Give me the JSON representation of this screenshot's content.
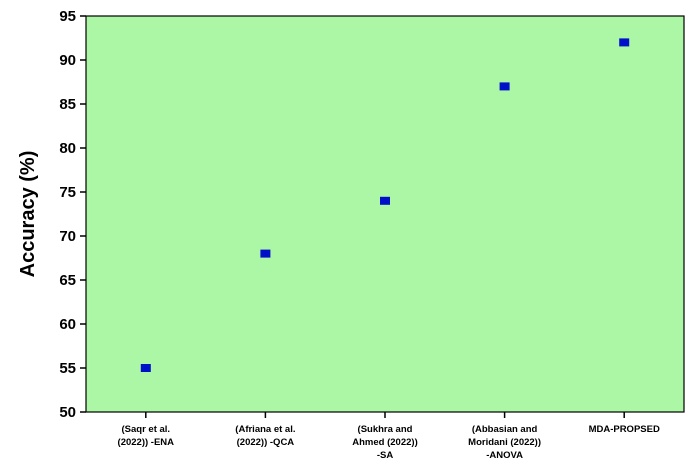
{
  "chart_data": {
    "type": "scatter",
    "title": "",
    "xlabel": "",
    "ylabel": "Accuracy (%)",
    "categories": [
      [
        "(Saqr et al.",
        "(2022)) -ENA"
      ],
      [
        "(Afriana et al.",
        "(2022)) -QCA"
      ],
      [
        "(Sukhra and",
        "Ahmed (2022))",
        "-SA"
      ],
      [
        "(Abbasian and",
        "Moridani (2022))",
        "-ANOVA"
      ],
      [
        "MDA-PROPSED"
      ]
    ],
    "values": [
      55,
      68,
      74,
      87,
      92
    ],
    "ylim": [
      50,
      95
    ],
    "yticks": [
      50,
      55,
      60,
      65,
      70,
      75,
      80,
      85,
      90,
      95
    ],
    "grid": false,
    "legend": "none",
    "colors": {
      "plot_background": "#abf7a6",
      "marker": "#0010c8",
      "axis": "#000000"
    }
  }
}
